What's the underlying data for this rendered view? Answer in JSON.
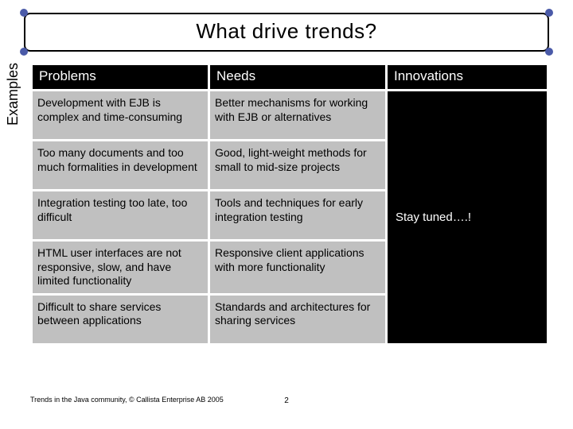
{
  "theme": {
    "dot_color": "#4a5aa8",
    "header_bg": "#000000",
    "header_fg": "#ffffff",
    "cell_bg": "#c0c0c0",
    "innov_bg": "#000000",
    "innov_fg": "#ffffff"
  },
  "title": "What drive trends?",
  "side_label": "Examples",
  "columns": {
    "problems": "Problems",
    "needs": "Needs",
    "innovations": "Innovations"
  },
  "rows": [
    {
      "problem": "Development with EJB is complex and time-consuming",
      "need": "Better mechanisms for working with EJB or alternatives"
    },
    {
      "problem": "Too many documents and too much formalities in development",
      "need": "Good, light-weight methods for small to mid-size projects"
    },
    {
      "problem": "Integration testing too late, too difficult",
      "need": "Tools and techniques for early integration testing"
    },
    {
      "problem": "HTML user interfaces are not responsive, slow, and have limited functionality",
      "need": "Responsive client applications with more functionality"
    },
    {
      "problem": "Difficult to share services between applications",
      "need": "Standards and architectures for sharing services"
    }
  ],
  "innovations_text": "Stay tuned….!",
  "footer": "Trends in the Java community, © Callista Enterprise AB 2005",
  "page_number": "2"
}
